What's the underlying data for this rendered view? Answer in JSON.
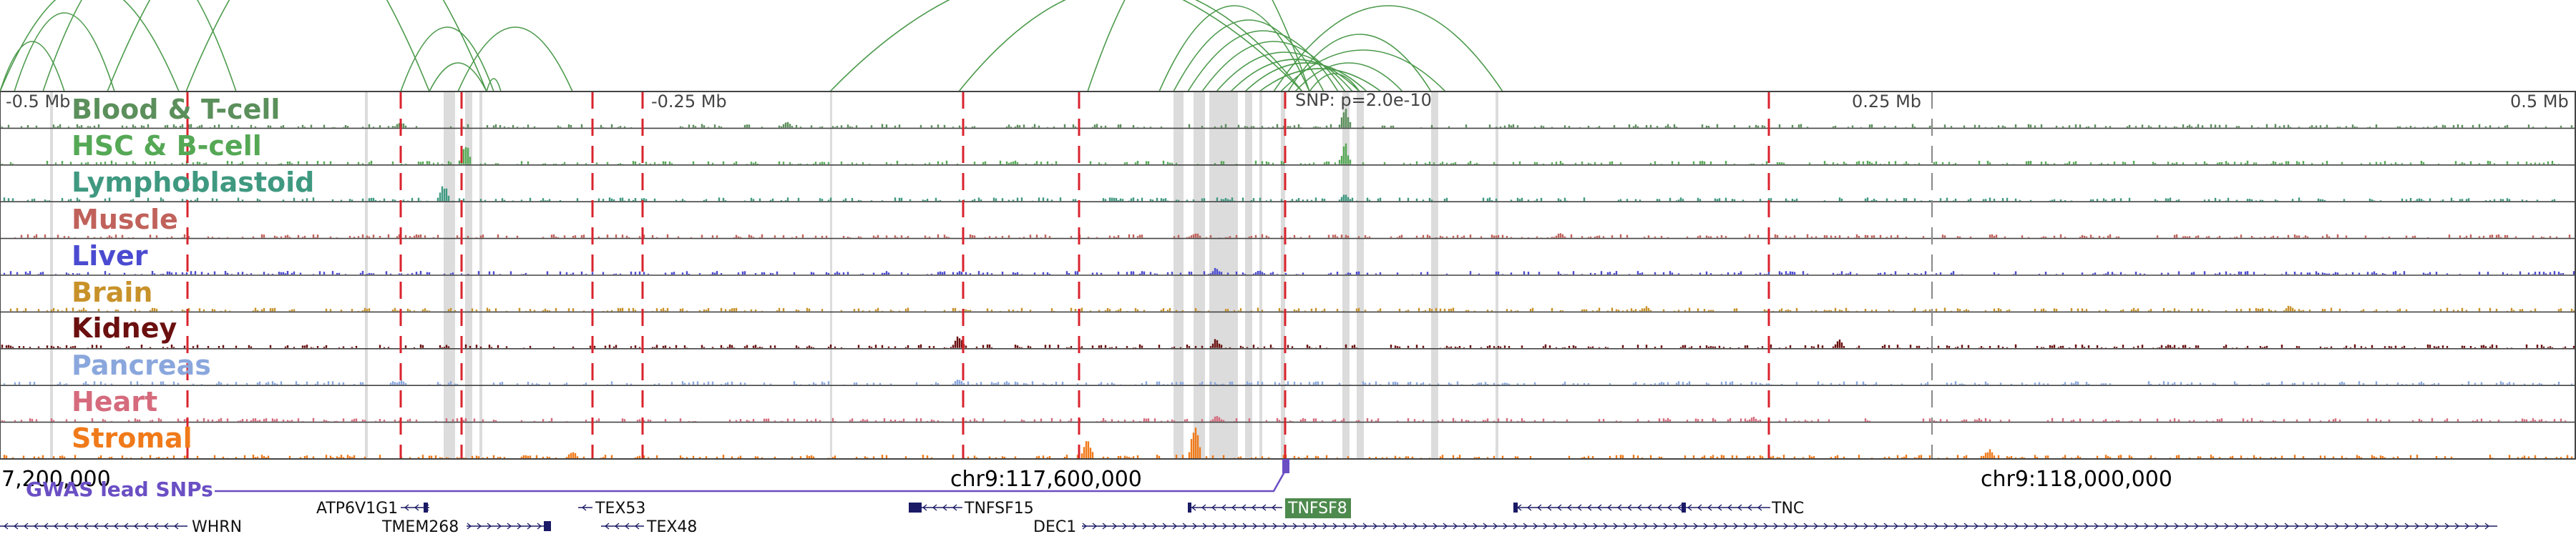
{
  "scale_labels": {
    "left": "-0.5 Mb",
    "midleft": "-0.25 Mb",
    "snp": "SNP: p=2.0e-10",
    "midright": "0.25 Mb",
    "right": "0.5 Mb"
  },
  "tracks": [
    {
      "label": "Blood & T-cell",
      "color": "#5b8f5b"
    },
    {
      "label": "HSC & B-cell",
      "color": "#55a855"
    },
    {
      "label": "Lymphoblastoid",
      "color": "#3f9980"
    },
    {
      "label": "Muscle",
      "color": "#c0625b"
    },
    {
      "label": "Liver",
      "color": "#4b4bd1"
    },
    {
      "label": "Brain",
      "color": "#c8922a"
    },
    {
      "label": "Kidney",
      "color": "#6b0f0f"
    },
    {
      "label": "Pancreas",
      "color": "#8aa7dd"
    },
    {
      "label": "Heart",
      "color": "#d56b7d"
    },
    {
      "label": "Stromal",
      "color": "#f07a1a"
    }
  ],
  "coordinates": {
    "left": "7,200,000",
    "center": "chr9:117,600,000",
    "right": "chr9:118,000,000"
  },
  "gwas_label": "GWAS lead SNPs",
  "genes": {
    "atp6v1g1": "ATP6V1G1",
    "tex53": "TEX53",
    "tnfsf15": "TNFSF15",
    "tnfsf8": "TNFSF8",
    "tnc": "TNC",
    "whrn": "WHRN",
    "tmem268": "TMEM268",
    "tex48": "TEX48",
    "dec1": "DEC1"
  },
  "colors": {
    "arc": "#4c9a4c",
    "snp_line": "#d9232d",
    "highlight": "#dcdcdc",
    "gwas": "#6a4fc4",
    "gene": "#1a1a66",
    "tnfsf8_box": "#4d8a4d"
  }
}
